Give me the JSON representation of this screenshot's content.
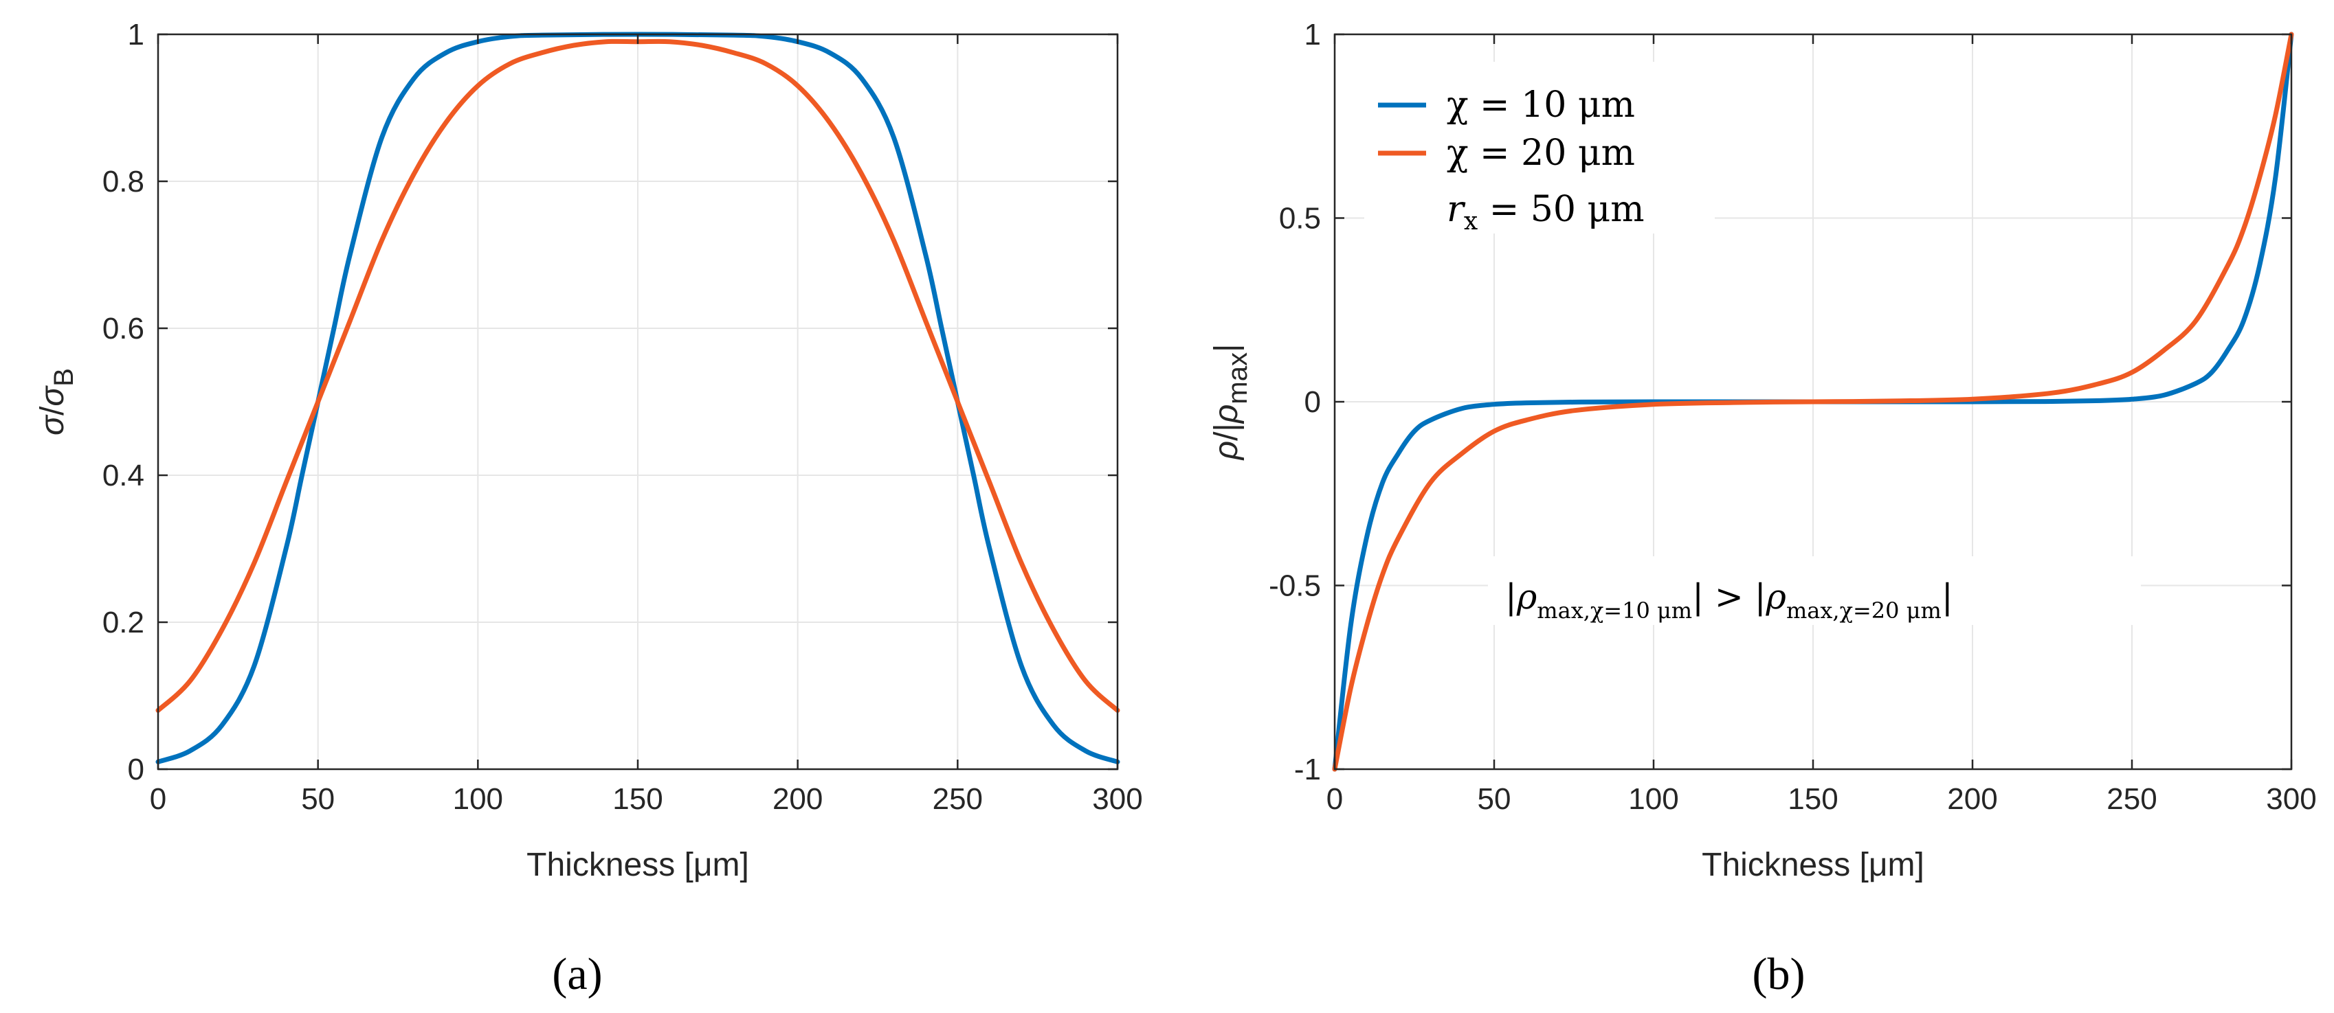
{
  "colors": {
    "blue": "#0072BD",
    "orange": "#EF5A23",
    "grid": "#e6e6e6",
    "axis": "#262626"
  },
  "chart_data": [
    {
      "type": "line",
      "panel_label": "(a)",
      "xlabel": "Thickness [μm]",
      "ylabel": {
        "sigma": "σ",
        "slash": "/",
        "sigma2": "σ",
        "sub": "B"
      },
      "xlim": [
        0,
        300
      ],
      "ylim": [
        0,
        1
      ],
      "xticks": [
        0,
        50,
        100,
        150,
        200,
        250,
        300
      ],
      "yticks": [
        0,
        0.2,
        0.4,
        0.6,
        0.8,
        1
      ],
      "xtick_labels": [
        "0",
        "50",
        "100",
        "150",
        "200",
        "250",
        "300"
      ],
      "ytick_labels": [
        "0",
        "0.2",
        "0.4",
        "0.6",
        "0.8",
        "1"
      ],
      "grid": true,
      "series": [
        {
          "color": "#0072BD",
          "x": [
            0,
            10,
            20,
            30,
            40,
            45,
            50,
            55,
            60,
            70,
            80,
            90,
            100,
            110,
            120,
            150,
            180,
            190,
            200,
            210,
            220,
            230,
            240,
            245,
            250,
            255,
            260,
            270,
            280,
            290,
            300
          ],
          "y": [
            0.01,
            0.025,
            0.06,
            0.14,
            0.3,
            0.4,
            0.5,
            0.6,
            0.7,
            0.86,
            0.94,
            0.975,
            0.99,
            0.997,
            0.999,
            1.0,
            0.999,
            0.997,
            0.99,
            0.975,
            0.94,
            0.86,
            0.7,
            0.6,
            0.5,
            0.4,
            0.3,
            0.14,
            0.06,
            0.025,
            0.01
          ]
        },
        {
          "color": "#EF5A23",
          "x": [
            0,
            10,
            20,
            30,
            40,
            50,
            60,
            70,
            80,
            90,
            100,
            110,
            120,
            130,
            140,
            150,
            160,
            170,
            180,
            190,
            200,
            210,
            220,
            230,
            240,
            250,
            260,
            270,
            280,
            290,
            300
          ],
          "y": [
            0.08,
            0.12,
            0.19,
            0.28,
            0.39,
            0.5,
            0.61,
            0.72,
            0.81,
            0.88,
            0.93,
            0.96,
            0.975,
            0.985,
            0.99,
            0.99,
            0.99,
            0.985,
            0.975,
            0.96,
            0.93,
            0.88,
            0.81,
            0.72,
            0.61,
            0.5,
            0.39,
            0.28,
            0.19,
            0.12,
            0.08
          ]
        }
      ]
    },
    {
      "type": "line",
      "panel_label": "(b)",
      "xlabel": "Thickness [μm]",
      "ylabel": {
        "rho": "ρ",
        "slash": "/",
        "bar1": "|",
        "rho2": "ρ",
        "sub": "max",
        "bar2": "|"
      },
      "xlim": [
        0,
        300
      ],
      "ylim": [
        -1,
        1
      ],
      "xticks": [
        0,
        50,
        100,
        150,
        200,
        250,
        300
      ],
      "yticks": [
        -1,
        -0.5,
        0,
        0.5,
        1
      ],
      "xtick_labels": [
        "0",
        "50",
        "100",
        "150",
        "200",
        "250",
        "300"
      ],
      "ytick_labels": [
        "-1",
        "-0.5",
        "0",
        "0.5",
        "1"
      ],
      "grid": true,
      "legend": {
        "location": "top-left",
        "entries": [
          {
            "label": "χ = 10 μm",
            "color": "#0072BD"
          },
          {
            "label": "χ = 20 μm",
            "color": "#EF5A23"
          }
        ],
        "extra": {
          "sym": "r",
          "sub": "x",
          "rest": " = 50 μm"
        }
      },
      "annotation": {
        "bar": "|",
        "rho": "ρ",
        "sub1": "max,χ=10 μm",
        "gt": " > ",
        "sub2": "max,χ=20 μm"
      },
      "series": [
        {
          "name": "χ = 10 μm",
          "color": "#0072BD",
          "x": [
            0,
            5,
            10,
            15,
            20,
            25,
            30,
            40,
            50,
            60,
            75,
            100,
            150,
            200,
            225,
            240,
            250,
            260,
            270,
            275,
            280,
            285,
            290,
            295,
            300
          ],
          "y": [
            -1.0,
            -0.61,
            -0.37,
            -0.22,
            -0.14,
            -0.08,
            -0.05,
            -0.018,
            -0.007,
            -0.003,
            -0.001,
            0,
            0,
            0,
            0.001,
            0.003,
            0.007,
            0.018,
            0.05,
            0.08,
            0.14,
            0.22,
            0.37,
            0.61,
            1.0
          ]
        },
        {
          "name": "χ = 20 μm",
          "color": "#EF5A23",
          "x": [
            0,
            5,
            10,
            15,
            20,
            30,
            40,
            50,
            60,
            75,
            100,
            125,
            150,
            175,
            200,
            225,
            240,
            250,
            260,
            270,
            280,
            285,
            290,
            295,
            300
          ],
          "y": [
            -1.0,
            -0.78,
            -0.61,
            -0.47,
            -0.37,
            -0.22,
            -0.14,
            -0.08,
            -0.05,
            -0.024,
            -0.007,
            -0.002,
            0,
            0.002,
            0.007,
            0.024,
            0.05,
            0.08,
            0.14,
            0.22,
            0.37,
            0.47,
            0.61,
            0.78,
            1.0
          ]
        }
      ]
    }
  ]
}
